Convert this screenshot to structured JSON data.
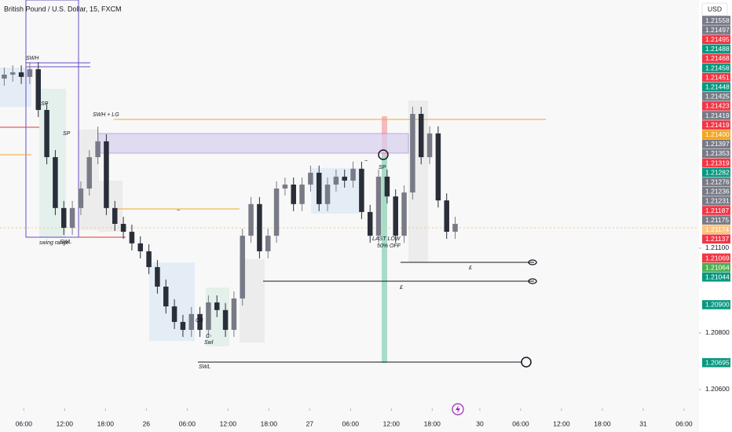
{
  "chart_data": {
    "type": "candlestick",
    "title": "British Pound / U.S. Dollar, 15, FXCM",
    "currency": "USD",
    "up_color": "#787b86",
    "down_color": "#2a2e39",
    "x": [
      0.625,
      1.875,
      3.125,
      4.375,
      5.625,
      6.875,
      8.125,
      9.375,
      10.625,
      11.875,
      13.125,
      14.375,
      15.625,
      16.875,
      18.125,
      19.375,
      20.625,
      21.875,
      23.125,
      24.375,
      25.625,
      26.875,
      28.125,
      29.375,
      30.625,
      31.875,
      33.125,
      34.375,
      35.625,
      36.875,
      38.125,
      39.375,
      40.625,
      41.875,
      43.125,
      44.375,
      45.625,
      46.875,
      48.125,
      49.375,
      50.625,
      51.875,
      53.125,
      54.375,
      55.625,
      56.875,
      58.125,
      59.375,
      60.625,
      61.875,
      63.125,
      64.375,
      65.625,
      66.875
    ],
    "open": [
      1.217,
      1.21714,
      1.21722,
      1.21706,
      1.21733,
      1.21589,
      1.21422,
      1.21242,
      1.21172,
      1.21242,
      1.21311,
      1.21422,
      1.21478,
      1.21242,
      1.21186,
      1.21158,
      1.21117,
      1.21089,
      1.21033,
      1.20964,
      1.20894,
      1.20839,
      1.20811,
      1.20867,
      1.20811,
      1.20908,
      1.20881,
      1.20811,
      1.20922,
      1.21144,
      1.21256,
      1.21089,
      1.21144,
      1.21311,
      1.21325,
      1.21256,
      1.21325,
      1.21367,
      1.21256,
      1.21325,
      1.21353,
      1.21339,
      1.21381,
      1.21228,
      1.21144,
      1.21353,
      1.21283,
      1.21144,
      1.21297,
      1.21575,
      1.21422,
      1.21506,
      1.21269,
      1.21158
    ],
    "high": [
      1.21739,
      1.21747,
      1.21747,
      1.21758,
      1.21758,
      1.21614,
      1.21447,
      1.21267,
      1.21267,
      1.21336,
      1.21447,
      1.2153,
      1.21503,
      1.21267,
      1.21211,
      1.21183,
      1.21142,
      1.21114,
      1.21058,
      1.20989,
      1.20919,
      1.20864,
      1.20892,
      1.20892,
      1.20933,
      1.20933,
      1.20906,
      1.20947,
      1.21169,
      1.21281,
      1.21281,
      1.21169,
      1.21336,
      1.2135,
      1.2135,
      1.2135,
      1.21392,
      1.21392,
      1.2135,
      1.21378,
      1.21378,
      1.21406,
      1.21406,
      1.21253,
      1.21378,
      1.21378,
      1.21308,
      1.21322,
      1.216,
      1.216,
      1.21531,
      1.21531,
      1.21294,
      1.21211
    ],
    "low": [
      1.21675,
      1.21689,
      1.21681,
      1.21681,
      1.21564,
      1.21397,
      1.21217,
      1.21147,
      1.21147,
      1.21217,
      1.21286,
      1.21397,
      1.21217,
      1.21161,
      1.21133,
      1.21092,
      1.21064,
      1.21008,
      1.20939,
      1.20869,
      1.20814,
      1.20786,
      1.20786,
      1.20786,
      1.20786,
      1.20856,
      1.20786,
      1.20786,
      1.20897,
      1.21119,
      1.21064,
      1.21064,
      1.21119,
      1.21286,
      1.21231,
      1.21231,
      1.213,
      1.21231,
      1.21231,
      1.213,
      1.21314,
      1.21314,
      1.21203,
      1.21119,
      1.21119,
      1.21258,
      1.21119,
      1.21119,
      1.21272,
      1.21397,
      1.21397,
      1.21244,
      1.21133,
      1.21133
    ],
    "close": [
      1.21714,
      1.21722,
      1.21706,
      1.21733,
      1.21589,
      1.21422,
      1.21242,
      1.21172,
      1.21242,
      1.21311,
      1.21422,
      1.21478,
      1.21242,
      1.21186,
      1.21158,
      1.21117,
      1.21089,
      1.21033,
      1.20964,
      1.20894,
      1.20839,
      1.20811,
      1.20867,
      1.20811,
      1.20908,
      1.20881,
      1.20811,
      1.20922,
      1.21144,
      1.21256,
      1.21089,
      1.21144,
      1.21311,
      1.21325,
      1.21256,
      1.21325,
      1.21367,
      1.21256,
      1.21325,
      1.21353,
      1.21339,
      1.21381,
      1.21228,
      1.21144,
      1.21353,
      1.21283,
      1.21144,
      1.21297,
      1.21575,
      1.21422,
      1.21506,
      1.21269,
      1.21158,
      1.21186
    ],
    "xlim": [
      0,
      102.7
    ],
    "xticks": [
      {
        "value": 3.5,
        "label": "06:00"
      },
      {
        "value": 9.5,
        "label": "12:00"
      },
      {
        "value": 15.5,
        "label": "18:00"
      },
      {
        "value": 21.5,
        "label": "26"
      },
      {
        "value": 27.5,
        "label": "06:00"
      },
      {
        "value": 33.5,
        "label": "12:00"
      },
      {
        "value": 39.5,
        "label": "18:00"
      },
      {
        "value": 45.5,
        "label": "27"
      },
      {
        "value": 51.5,
        "label": "06:00"
      },
      {
        "value": 57.5,
        "label": "12:00"
      },
      {
        "value": 63.5,
        "label": "18:00"
      },
      {
        "value": 70.5,
        "label": "30"
      },
      {
        "value": 76.5,
        "label": "06:00"
      },
      {
        "value": 82.5,
        "label": "12:00"
      },
      {
        "value": 88.5,
        "label": "18:00"
      },
      {
        "value": 94.5,
        "label": "31"
      },
      {
        "value": 100.5,
        "label": "06:00"
      }
    ],
    "ylim": [
      1.20533,
      1.21978
    ],
    "yticks": [
      {
        "value": 1.211,
        "label": "1.21100"
      },
      {
        "value": 1.208,
        "label": "1.20800"
      },
      {
        "value": 1.206,
        "label": "1.20600"
      }
    ],
    "price_tags": [
      {
        "label": "1.21558",
        "color": "#787b86"
      },
      {
        "label": "1.21497",
        "color": "#787b86"
      },
      {
        "label": "1.21495",
        "color": "#f23645"
      },
      {
        "label": "1.21488",
        "color": "#089981"
      },
      {
        "label": "1.21468",
        "color": "#f23645"
      },
      {
        "label": "1.21458",
        "color": "#089981"
      },
      {
        "label": "1.21451",
        "color": "#f23645"
      },
      {
        "label": "1.21448",
        "color": "#089981"
      },
      {
        "label": "1.21425",
        "color": "#787b86"
      },
      {
        "label": "1.21423",
        "color": "#f23645"
      },
      {
        "label": "1.21419",
        "color": "#787b86"
      },
      {
        "label": "1.21419",
        "color": "#f23645"
      },
      {
        "label": "1.21400",
        "color": "#f5a623"
      },
      {
        "label": "1.21397",
        "color": "#787b86"
      },
      {
        "label": "1.21353",
        "color": "#787b86"
      },
      {
        "label": "1.21319",
        "color": "#f23645"
      },
      {
        "label": "1.21282",
        "color": "#089981"
      },
      {
        "label": "1.21276",
        "color": "#787b86"
      },
      {
        "label": "1.21236",
        "color": "#787b86"
      },
      {
        "label": "1.21231",
        "color": "#787b86"
      },
      {
        "label": "1.21187",
        "color": "#f23645"
      },
      {
        "label": "1.21175",
        "color": "#787b86"
      },
      {
        "label": "1.21174",
        "color": "#fbc47e"
      },
      {
        "label": "1.21137",
        "color": "#f23645"
      },
      {
        "label": "1.21069",
        "color": "#f23645"
      },
      {
        "label": "1.21064",
        "color": "#4caf50"
      },
      {
        "label": "1.21044",
        "color": "#089981"
      },
      {
        "label": "1.20900",
        "color": "#089981"
      },
      {
        "label": "1.20695",
        "color": "#089981"
      }
    ],
    "annotations": [
      "SWH",
      "SP",
      "SP",
      "SWH + LG",
      "~",
      "swing range",
      "SWL",
      "CB",
      "C-",
      "Swl",
      "~",
      "SP",
      "LAST LOW",
      "50% OFF",
      "£",
      "£",
      "SWL"
    ]
  }
}
